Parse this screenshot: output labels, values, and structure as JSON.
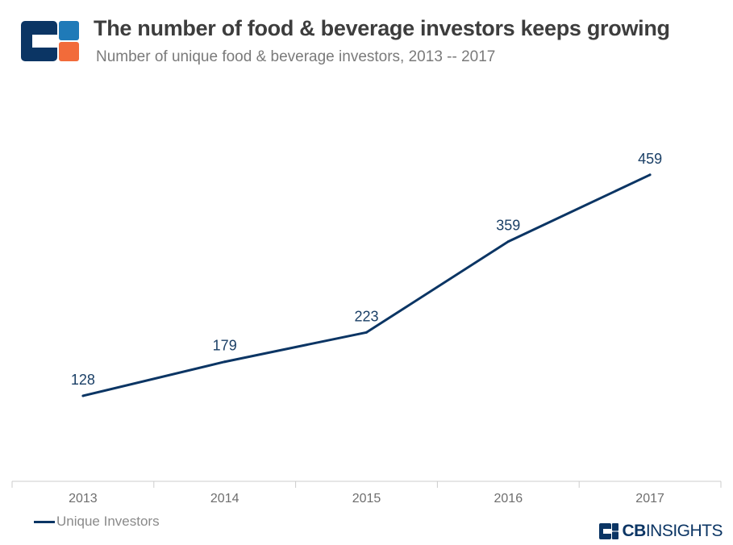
{
  "header": {
    "title": "The number of food & beverage investors keeps growing",
    "subtitle": "Number of unique food & beverage investors, 2013 -- 2017",
    "logo_icon": "cb-insights-logo-icon"
  },
  "colors": {
    "line": "#0b3564",
    "logo_navy": "#0b3564",
    "logo_blue": "#1f7ab8",
    "logo_orange": "#f26b3a",
    "axis": "#cccccc",
    "tick_text": "#6e6e6e",
    "label_text": "#1a3f66"
  },
  "chart_data": {
    "type": "line",
    "title": "The number of food & beverage investors keeps growing",
    "subtitle": "Number of unique food & beverage investors, 2013 -- 2017",
    "categories": [
      "2013",
      "2014",
      "2015",
      "2016",
      "2017"
    ],
    "series": [
      {
        "name": "Unique Investors",
        "values": [
          128,
          179,
          223,
          359,
          459
        ],
        "color": "#0b3564"
      }
    ],
    "data_labels": true,
    "ylim": [
      0,
      600
    ],
    "grid": false,
    "legend": "bottom-left"
  },
  "legend": {
    "label": "Unique Investors"
  },
  "brand": {
    "cb": "CB",
    "insights": "INSIGHTS",
    "icon": "cb-insights-mark-icon"
  }
}
